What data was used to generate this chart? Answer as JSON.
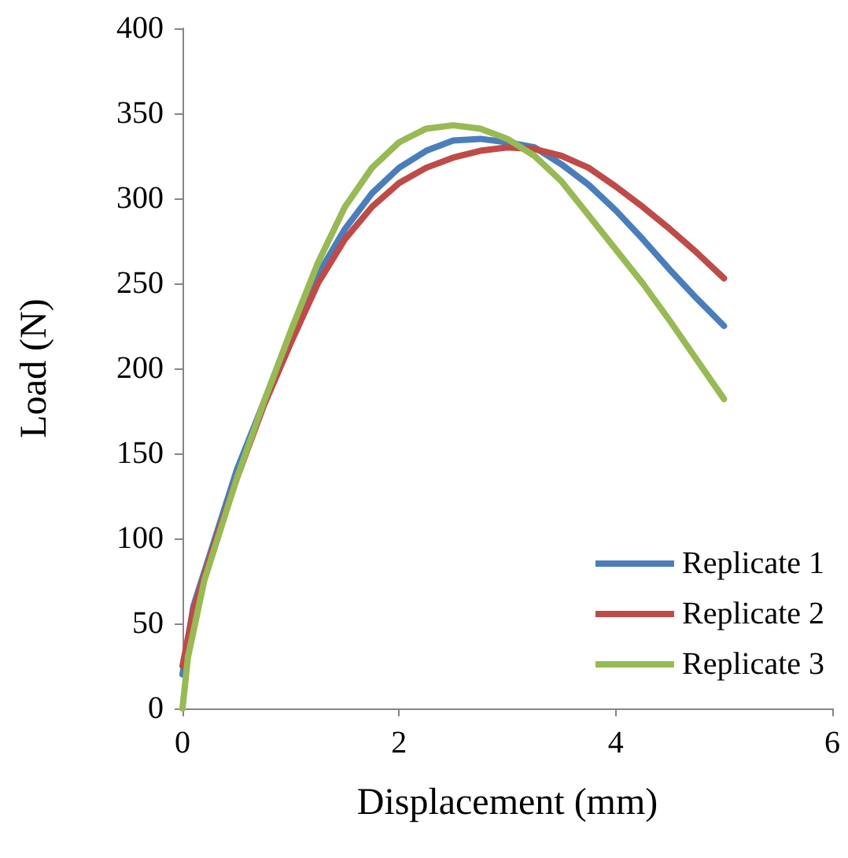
{
  "chart_data": {
    "type": "line",
    "xlabel": "Displacement (mm)",
    "ylabel": "Load (N)",
    "xlim": [
      0,
      6
    ],
    "xticks": [
      0,
      2,
      4,
      6
    ],
    "ylim": [
      0,
      400
    ],
    "yticks": [
      0,
      50,
      100,
      150,
      200,
      250,
      300,
      350,
      400
    ],
    "grid": false,
    "legend": "bottom right",
    "marker": "none",
    "line_style": "solid",
    "series": [
      {
        "name": "Replicate 1",
        "color": "#4a7ebb",
        "x": [
          0,
          0.1,
          0.3,
          0.5,
          0.75,
          1.0,
          1.25,
          1.5,
          1.75,
          2.0,
          2.25,
          2.5,
          2.75,
          3.0,
          3.25,
          3.5,
          3.75,
          4.0,
          4.25,
          4.5,
          4.75,
          5.0
        ],
        "values": [
          20,
          60,
          100,
          140,
          180,
          220,
          255,
          282,
          303,
          318,
          328,
          334,
          335,
          333,
          330,
          320,
          308,
          293,
          276,
          258,
          241,
          225
        ]
      },
      {
        "name": "Replicate 2",
        "color": "#be4b48",
        "x": [
          0,
          0.1,
          0.3,
          0.5,
          0.75,
          1.0,
          1.25,
          1.5,
          1.75,
          2.0,
          2.25,
          2.5,
          2.75,
          3.0,
          3.25,
          3.5,
          3.75,
          4.0,
          4.25,
          4.5,
          4.75,
          5.0
        ],
        "values": [
          25,
          58,
          98,
          135,
          178,
          215,
          250,
          276,
          295,
          309,
          318,
          324,
          328,
          330,
          329,
          325,
          318,
          307,
          295,
          282,
          268,
          253
        ]
      },
      {
        "name": "Replicate 3",
        "color": "#98b954",
        "x": [
          0,
          0.05,
          0.2,
          0.5,
          0.75,
          1.0,
          1.25,
          1.5,
          1.75,
          2.0,
          2.25,
          2.5,
          2.75,
          3.0,
          3.25,
          3.5,
          3.75,
          4.0,
          4.25,
          4.5,
          4.75,
          5.0
        ],
        "values": [
          0,
          30,
          75,
          135,
          180,
          222,
          262,
          295,
          318,
          333,
          341,
          343,
          341,
          335,
          325,
          310,
          290,
          270,
          250,
          228,
          205,
          182
        ]
      }
    ]
  }
}
